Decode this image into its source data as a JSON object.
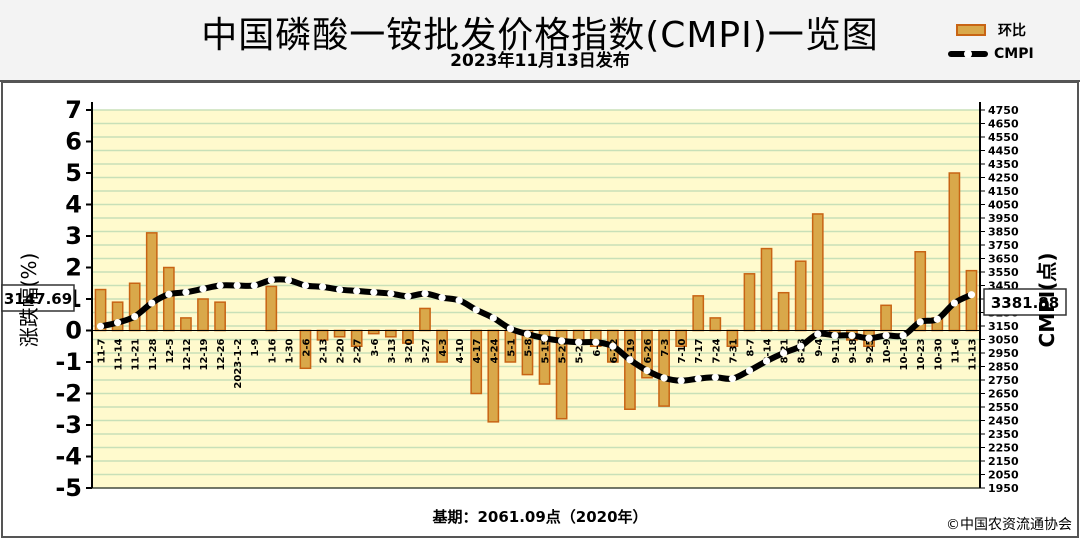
{
  "header": {
    "title": "中国磷酸一铵批发价格指数(CMPI)一览图",
    "subtitle": "2023年11月13日发布"
  },
  "legend": {
    "bar_label": "环比",
    "line_label": "CMPI"
  },
  "footer": {
    "base_text": "基期：2061.09点（2020年）",
    "copyright": "©中国农资流通协会"
  },
  "colors": {
    "bar_fill": "#d9a84a",
    "bar_edge": "#c86414",
    "plot_bg": "#fffacd",
    "gridline": "#c8e0b8",
    "line": "#000000",
    "marker": "#ffffff"
  },
  "chart_data": {
    "type": "bar",
    "xlabel": "",
    "ylabel": "涨跌幅(%)",
    "y2label": "CMPI(点)",
    "ylim": [
      -5,
      7
    ],
    "yticks": [
      -5,
      -4,
      -3,
      -2,
      -1,
      0,
      1,
      2,
      3,
      4,
      5,
      6,
      7
    ],
    "y2lim": [
      1950,
      4750
    ],
    "y2ticks": [
      1950,
      2050,
      2150,
      2250,
      2350,
      2450,
      2550,
      2650,
      2750,
      2850,
      2950,
      3050,
      3150,
      3250,
      3350,
      3450,
      3550,
      3650,
      3750,
      3850,
      3950,
      4050,
      4150,
      4250,
      4350,
      4450,
      4550,
      4650,
      4750
    ],
    "grid": true,
    "categories": [
      "11-7",
      "11-14",
      "11-21",
      "11-28",
      "12-5",
      "12-12",
      "12-19",
      "12-26",
      "2023-1-2",
      "1-9",
      "1-16",
      "1-30",
      "2-6",
      "2-13",
      "2-20",
      "2-27",
      "3-6",
      "3-13",
      "3-20",
      "3-27",
      "4-3",
      "4-10",
      "4-17",
      "4-24",
      "5-1",
      "5-8",
      "5-15",
      "5-22",
      "5-29",
      "6-5",
      "6-12",
      "6-19",
      "6-26",
      "7-3",
      "7-10",
      "7-17",
      "7-24",
      "7-31",
      "8-7",
      "8-14",
      "8-21",
      "8-28",
      "9-4",
      "9-11",
      "9-18",
      "9-25",
      "10-9",
      "10-16",
      "10-23",
      "10-30",
      "11-6",
      "11-13"
    ],
    "series": [
      {
        "name": "环比",
        "type": "bar",
        "axis": "left",
        "values": [
          1.3,
          0.9,
          1.5,
          3.1,
          2.0,
          0.4,
          1.0,
          0.9,
          0.0,
          0.0,
          1.4,
          0.0,
          -1.2,
          -0.3,
          -0.2,
          -0.5,
          -0.1,
          -0.2,
          -0.4,
          0.7,
          -1.0,
          0.0,
          -2.0,
          -2.9,
          -1.0,
          -1.4,
          -1.7,
          -2.8,
          -0.3,
          -0.5,
          -1.0,
          -2.5,
          -1.5,
          -2.4,
          -0.5,
          1.1,
          0.4,
          -0.5,
          1.8,
          2.6,
          1.2,
          2.2,
          3.7,
          -0.2,
          -0.3,
          -0.5,
          0.8,
          0.0,
          2.5,
          0.4,
          5.0,
          1.9
        ]
      },
      {
        "name": "CMPI",
        "type": "line",
        "axis": "right",
        "values": [
          3147.69,
          3175,
          3220,
          3320,
          3385,
          3400,
          3425,
          3450,
          3450,
          3450,
          3490,
          3490,
          3450,
          3440,
          3420,
          3410,
          3400,
          3390,
          3370,
          3390,
          3360,
          3340,
          3270,
          3210,
          3130,
          3090,
          3060,
          3040,
          3030,
          3030,
          3000,
          2900,
          2820,
          2765,
          2745,
          2760,
          2770,
          2760,
          2820,
          2890,
          2950,
          3000,
          3090,
          3080,
          3080,
          3060,
          3080,
          3080,
          3180,
          3200,
          3320,
          3381.88
        ]
      }
    ],
    "annotations": [
      {
        "text": "3147.69",
        "point_index": 0,
        "series": "CMPI"
      },
      {
        "text": "3381.88",
        "point_index": 51,
        "series": "CMPI"
      }
    ]
  }
}
